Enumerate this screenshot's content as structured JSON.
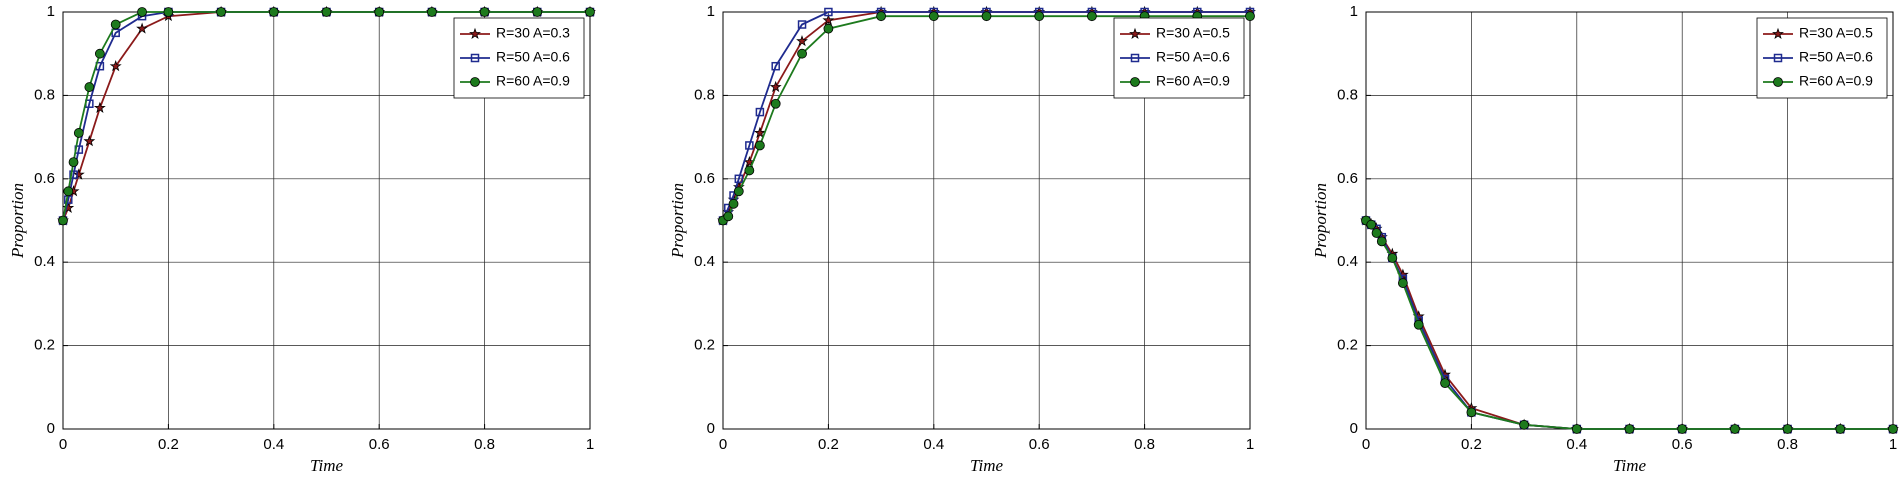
{
  "chart_data": [
    {
      "type": "line",
      "xlabel": "Time",
      "ylabel": "Proportion",
      "xlim": [
        0,
        1
      ],
      "ylim": [
        0,
        1
      ],
      "xticks": [
        0,
        0.2,
        0.4,
        0.6,
        0.8,
        1
      ],
      "yticks": [
        0,
        0.2,
        0.4,
        0.6,
        0.8,
        1
      ],
      "grid": true,
      "legend": "upper right",
      "x": [
        0,
        0.01,
        0.02,
        0.03,
        0.05,
        0.07,
        0.1,
        0.15,
        0.2,
        0.3,
        0.4,
        0.5,
        0.6,
        0.7,
        0.8,
        0.9,
        1
      ],
      "series": [
        {
          "name": "R=30 A=0.3",
          "color": "#8b1a1a",
          "marker": "star",
          "values": [
            0.5,
            0.53,
            0.57,
            0.61,
            0.69,
            0.77,
            0.87,
            0.96,
            0.99,
            1,
            1,
            1,
            1,
            1,
            1,
            1,
            1
          ]
        },
        {
          "name": "R=50 A=0.6",
          "color": "#1f2b8f",
          "marker": "square",
          "values": [
            0.5,
            0.55,
            0.61,
            0.67,
            0.78,
            0.87,
            0.95,
            0.99,
            1,
            1,
            1,
            1,
            1,
            1,
            1,
            1,
            1
          ]
        },
        {
          "name": "R=60 A=0.9",
          "color": "#1d7a1d",
          "marker": "circle",
          "values": [
            0.5,
            0.57,
            0.64,
            0.71,
            0.82,
            0.9,
            0.97,
            1,
            1,
            1,
            1,
            1,
            1,
            1,
            1,
            1,
            1
          ]
        }
      ]
    },
    {
      "type": "line",
      "xlabel": "Time",
      "ylabel": "Proportion",
      "xlim": [
        0,
        1
      ],
      "ylim": [
        0,
        1
      ],
      "xticks": [
        0,
        0.2,
        0.4,
        0.6,
        0.8,
        1
      ],
      "yticks": [
        0,
        0.2,
        0.4,
        0.6,
        0.8,
        1
      ],
      "grid": true,
      "legend": "upper right",
      "x": [
        0,
        0.01,
        0.02,
        0.03,
        0.05,
        0.07,
        0.1,
        0.15,
        0.2,
        0.3,
        0.4,
        0.5,
        0.6,
        0.7,
        0.8,
        0.9,
        1
      ],
      "series": [
        {
          "name": "R=30 A=0.5",
          "color": "#8b1a1a",
          "marker": "star",
          "values": [
            0.5,
            0.52,
            0.55,
            0.58,
            0.64,
            0.71,
            0.82,
            0.93,
            0.98,
            1,
            1,
            1,
            1,
            1,
            1,
            1,
            1
          ]
        },
        {
          "name": "R=50 A=0.6",
          "color": "#1f2b8f",
          "marker": "square",
          "values": [
            0.5,
            0.53,
            0.56,
            0.6,
            0.68,
            0.76,
            0.87,
            0.97,
            1,
            1,
            1,
            1,
            1,
            1,
            1,
            1,
            1
          ]
        },
        {
          "name": "R=60 A=0.9",
          "color": "#1d7a1d",
          "marker": "circle",
          "values": [
            0.5,
            0.51,
            0.54,
            0.57,
            0.62,
            0.68,
            0.78,
            0.9,
            0.96,
            0.99,
            0.99,
            0.99,
            0.99,
            0.99,
            0.99,
            0.99,
            0.99
          ]
        }
      ]
    },
    {
      "type": "line",
      "xlabel": "Time",
      "ylabel": "Proportion",
      "xlim": [
        0,
        1
      ],
      "ylim": [
        0,
        1
      ],
      "xticks": [
        0,
        0.2,
        0.4,
        0.6,
        0.8,
        1
      ],
      "yticks": [
        0,
        0.2,
        0.4,
        0.6,
        0.8,
        1
      ],
      "grid": true,
      "legend": "upper right",
      "x": [
        0,
        0.01,
        0.02,
        0.03,
        0.05,
        0.07,
        0.1,
        0.15,
        0.2,
        0.3,
        0.4,
        0.5,
        0.6,
        0.7,
        0.8,
        0.9,
        1
      ],
      "series": [
        {
          "name": "R=30 A=0.5",
          "color": "#8b1a1a",
          "marker": "star",
          "values": [
            0.5,
            0.49,
            0.48,
            0.46,
            0.42,
            0.37,
            0.27,
            0.13,
            0.05,
            0.01,
            0,
            0,
            0,
            0,
            0,
            0,
            0
          ]
        },
        {
          "name": "R=50 A=0.6",
          "color": "#1f2b8f",
          "marker": "square",
          "values": [
            0.5,
            0.49,
            0.48,
            0.46,
            0.41,
            0.36,
            0.26,
            0.12,
            0.04,
            0.01,
            0,
            0,
            0,
            0,
            0,
            0,
            0
          ]
        },
        {
          "name": "R=60 A=0.9",
          "color": "#1d7a1d",
          "marker": "circle",
          "values": [
            0.5,
            0.49,
            0.47,
            0.45,
            0.41,
            0.35,
            0.25,
            0.11,
            0.04,
            0.01,
            0,
            0,
            0,
            0,
            0,
            0,
            0
          ]
        }
      ]
    }
  ]
}
